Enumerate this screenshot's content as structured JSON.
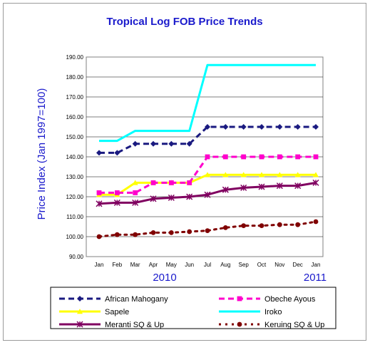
{
  "chart_data": {
    "type": "line",
    "title": "Tropical Log FOB Price Trends",
    "ylabel": "Price Index (Jan 1997=100)",
    "xlabel": "",
    "ylim": [
      90,
      190
    ],
    "yticks": [
      "90.00",
      "100.00",
      "110.00",
      "120.00",
      "130.00",
      "140.00",
      "150.00",
      "160.00",
      "170.00",
      "180.00",
      "190.00"
    ],
    "categories": [
      "Jan",
      "Feb",
      "Mar",
      "Apr",
      "May",
      "Jun",
      "Jul",
      "Aug",
      "Sep",
      "Oct",
      "Nov",
      "Dec",
      "Jan"
    ],
    "year_labels": {
      "first": "2010",
      "last": "2011"
    },
    "grid": "horizontal",
    "legend_placement": "bottom",
    "series": [
      {
        "name": "African Mahogany",
        "color": "#1a1a80",
        "marker": "diamond",
        "style": "dashed",
        "values": [
          142,
          142,
          146.5,
          146.5,
          146.5,
          146.5,
          155,
          155,
          155,
          155,
          155,
          155,
          155
        ]
      },
      {
        "name": "Obeche Ayous",
        "color": "#ff00cc",
        "marker": "square",
        "style": "dashed",
        "values": [
          122,
          122,
          122,
          127,
          127,
          127,
          140,
          140,
          140,
          140,
          140,
          140,
          140
        ]
      },
      {
        "name": "Sapele",
        "color": "#ffff00",
        "marker": "triangle",
        "style": "solid",
        "values": [
          121,
          121,
          127,
          127,
          127,
          127,
          131,
          131,
          131,
          131,
          131,
          131,
          131
        ]
      },
      {
        "name": "Iroko",
        "color": "#00ffff",
        "marker": "none",
        "style": "solid",
        "values": [
          148,
          148,
          153,
          153,
          153,
          153,
          186,
          186,
          186,
          186,
          186,
          186,
          186
        ]
      },
      {
        "name": "Meranti SQ & Up",
        "color": "#800060",
        "marker": "star",
        "style": "solid",
        "values": [
          116.5,
          117,
          117,
          119,
          119.5,
          120,
          121,
          123.5,
          124.5,
          125,
          125.5,
          125.5,
          127
        ]
      },
      {
        "name": "Keruing SQ & Up",
        "color": "#800000",
        "marker": "circle",
        "style": "dotted",
        "values": [
          100,
          101,
          101,
          102,
          102,
          102.5,
          103,
          104.5,
          105.5,
          105.5,
          106,
          106,
          107.5
        ]
      }
    ]
  }
}
